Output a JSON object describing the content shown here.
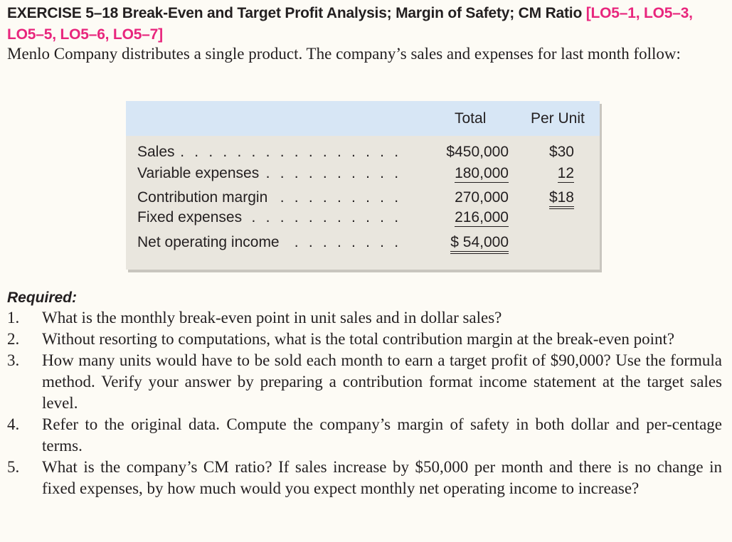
{
  "heading": {
    "title": "EXERCISE 5–18 Break-Even and Target Profit Analysis; Margin of Safety; CM Ratio",
    "objectives_line1": "[LO5–1, LO5–3,",
    "objectives_line2": "LO5–5, LO5–6, LO5–7]"
  },
  "intro": "Menlo Company distributes a single product. The company’s sales and expenses for last month follow:",
  "table": {
    "col_total": "Total",
    "col_per_unit": "Per Unit",
    "rows": [
      {
        "label": "Sales",
        "total": "$450,000",
        "per_unit": "$30"
      },
      {
        "label": "Variable expenses",
        "total": "180,000",
        "per_unit": "12"
      },
      {
        "label": "Contribution margin",
        "total": "270,000",
        "per_unit": "$18"
      },
      {
        "label": "Fixed expenses",
        "total": "216,000",
        "per_unit": ""
      },
      {
        "label": "Net operating income",
        "total": "$ 54,000",
        "per_unit": ""
      }
    ]
  },
  "required": {
    "title": "Required:",
    "items": [
      {
        "num": "1.",
        "text": "What is the monthly break-even point in unit sales and in dollar sales?"
      },
      {
        "num": "2.",
        "text": "Without resorting to computations, what is the total contribution margin at the break-even point?"
      },
      {
        "num": "3.",
        "text": "How many units would have to be sold each month to earn a target profit of $90,000? Use the formula method. Verify your answer by preparing a contribution format income statement at the target sales level."
      },
      {
        "num": "4.",
        "text": "Refer to the original data. Compute the company’s margin of safety in both dollar and per-centage terms."
      },
      {
        "num": "5.",
        "text": "What is the company’s CM ratio? If sales increase by $50,000 per month and there is no change in fixed expenses, by how much would you expect monthly net operating income to increase?"
      }
    ]
  },
  "colors": {
    "objective_accent": "#e8267d",
    "table_header_bg": "#d7e6f5",
    "table_body_bg": "#e9e6de",
    "page_bg": "#fdfbf5",
    "text": "#231f20"
  }
}
